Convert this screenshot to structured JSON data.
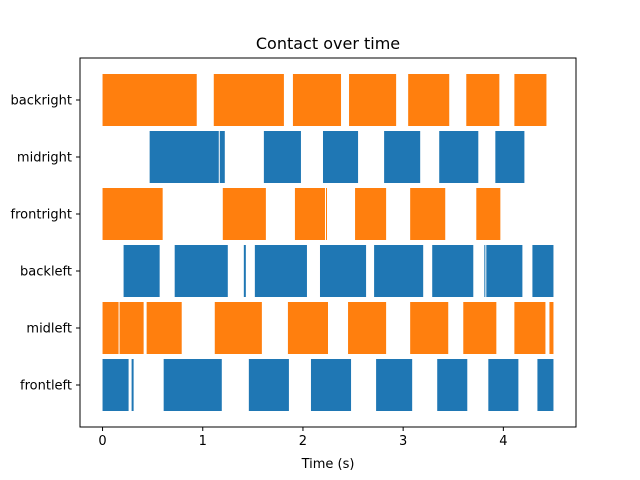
{
  "chart_data": {
    "type": "bar",
    "orientation": "horizontal-intervals",
    "title": "Contact over time",
    "xlabel": "Time (s)",
    "ylabel": "",
    "xlim": [
      -0.225,
      4.725
    ],
    "xticks": [
      0,
      1,
      2,
      3,
      4
    ],
    "grid": false,
    "legend": "none",
    "colors": {
      "orange": "#ff7f0e",
      "blue": "#1f77b4"
    },
    "categories": [
      "backright",
      "midright",
      "frontright",
      "backleft",
      "midleft",
      "frontleft"
    ],
    "series": [
      {
        "category": "backright",
        "color": "orange",
        "intervals": [
          [
            0.0,
            0.94
          ],
          [
            1.11,
            1.81
          ],
          [
            1.9,
            2.38
          ],
          [
            2.46,
            2.93
          ],
          [
            3.05,
            3.46
          ],
          [
            3.63,
            3.96
          ],
          [
            4.11,
            4.43
          ]
        ]
      },
      {
        "category": "midright",
        "color": "blue",
        "intervals": [
          [
            0.47,
            1.16
          ],
          [
            1.17,
            1.22
          ],
          [
            1.61,
            1.98
          ],
          [
            2.2,
            2.55
          ],
          [
            2.81,
            3.17
          ],
          [
            3.36,
            3.75
          ],
          [
            3.92,
            4.21
          ]
        ]
      },
      {
        "category": "frontright",
        "color": "orange",
        "intervals": [
          [
            0.0,
            0.6
          ],
          [
            1.2,
            1.63
          ],
          [
            1.92,
            2.22
          ],
          [
            2.23,
            2.24
          ],
          [
            2.52,
            2.83
          ],
          [
            3.07,
            3.42
          ],
          [
            3.73,
            3.97
          ]
        ]
      },
      {
        "category": "backleft",
        "color": "blue",
        "intervals": [
          [
            0.21,
            0.57
          ],
          [
            0.72,
            1.25
          ],
          [
            1.41,
            1.43
          ],
          [
            1.52,
            2.04
          ],
          [
            2.17,
            2.63
          ],
          [
            2.71,
            3.2
          ],
          [
            3.29,
            3.7
          ],
          [
            3.81,
            3.82
          ],
          [
            3.83,
            4.19
          ],
          [
            4.29,
            4.5
          ]
        ]
      },
      {
        "category": "midleft",
        "color": "orange",
        "intervals": [
          [
            0.0,
            0.16
          ],
          [
            0.17,
            0.41
          ],
          [
            0.44,
            0.79
          ],
          [
            1.12,
            1.59
          ],
          [
            1.85,
            2.25
          ],
          [
            2.45,
            2.83
          ],
          [
            3.07,
            3.45
          ],
          [
            3.6,
            3.93
          ],
          [
            4.11,
            4.42
          ],
          [
            4.46,
            4.5
          ]
        ]
      },
      {
        "category": "frontleft",
        "color": "blue",
        "intervals": [
          [
            0.0,
            0.26
          ],
          [
            0.29,
            0.31
          ],
          [
            0.61,
            1.19
          ],
          [
            1.46,
            1.86
          ],
          [
            2.08,
            2.48
          ],
          [
            2.73,
            3.09
          ],
          [
            3.34,
            3.64
          ],
          [
            3.85,
            4.15
          ],
          [
            4.34,
            4.5
          ]
        ]
      }
    ]
  }
}
